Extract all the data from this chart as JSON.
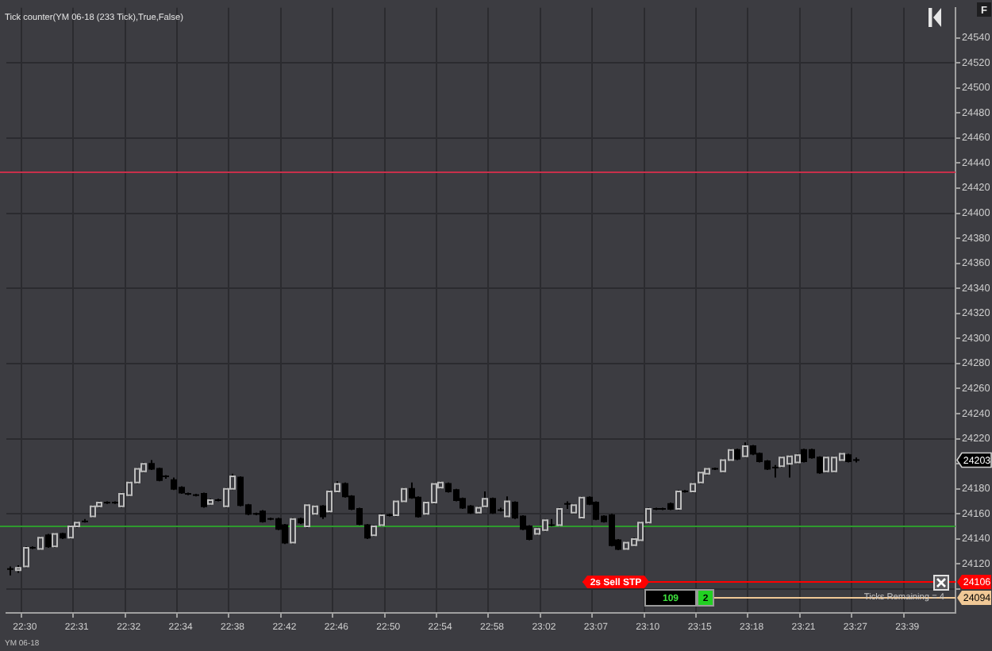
{
  "chart_data": {
    "type": "candlestick",
    "title": "Tick counter(YM 06-18 (233 Tick),True,False)",
    "categories": [
      null,
      null,
      "22:30",
      null,
      null,
      null,
      null,
      null,
      null,
      "22:31",
      null,
      null,
      null,
      null,
      null,
      null,
      "22:32",
      null,
      null,
      null,
      null,
      null,
      null,
      "22:34",
      null,
      null,
      null,
      null,
      null,
      null,
      "22:38",
      null,
      null,
      null,
      null,
      null,
      null,
      "22:42",
      null,
      null,
      null,
      null,
      null,
      null,
      "22:46",
      null,
      null,
      null,
      null,
      null,
      null,
      "22:50",
      null,
      null,
      null,
      null,
      null,
      null,
      "22:54",
      null,
      null,
      null,
      null,
      null,
      null,
      "22:58",
      null,
      null,
      null,
      null,
      null,
      null,
      "23:02",
      null,
      null,
      null,
      null,
      null,
      null,
      "23:07",
      null,
      null,
      null,
      null,
      null,
      null,
      "23:10",
      null,
      null,
      null,
      null,
      null,
      null,
      "23:15",
      null,
      null,
      null,
      null,
      null,
      null,
      "23:18",
      null,
      null,
      null,
      null,
      null,
      null,
      "23:21",
      null,
      null,
      null,
      null,
      null,
      null,
      "23:27",
      null,
      null,
      null,
      null,
      null,
      null,
      "23:39",
      null,
      null,
      null,
      null,
      null,
      null
    ],
    "ohlc": [
      [
        24116,
        24118,
        24111,
        24116
      ],
      [
        24115,
        24119,
        24113,
        24117
      ],
      [
        24118,
        24134,
        24117,
        24133
      ],
      [
        24133,
        24134,
        24132,
        24133
      ],
      [
        24132,
        24142,
        24131,
        24141
      ],
      [
        24143,
        24144,
        24133,
        24134
      ],
      [
        24134,
        24145,
        24133,
        24144
      ],
      [
        24144,
        24145,
        24140,
        24141
      ],
      [
        24141,
        24151,
        24140,
        24150
      ],
      [
        24150,
        24154,
        24149,
        24153
      ],
      [
        24154,
        24156,
        24153,
        24154
      ],
      [
        24158,
        24167,
        24157,
        24166
      ],
      [
        24166,
        24170,
        24165,
        24169
      ],
      [
        24169,
        24170,
        24168,
        24169
      ],
      [
        24169,
        24170,
        24168,
        24169
      ],
      [
        24166,
        24177,
        24165,
        24176
      ],
      [
        24175,
        24186,
        24174,
        24185
      ],
      [
        24185,
        24197,
        24184,
        24196
      ],
      [
        24194,
        24201,
        24193,
        24200
      ],
      [
        24200,
        24203,
        24195,
        24196
      ],
      [
        24196,
        24197,
        24186,
        24187
      ],
      [
        24190,
        24191,
        24188,
        24190
      ],
      [
        24187,
        24189,
        24179,
        24180
      ],
      [
        24181,
        24182,
        24176,
        24177
      ],
      [
        24176,
        24177,
        24175,
        24176
      ],
      [
        24175,
        24176,
        24174,
        24175
      ],
      [
        24176,
        24177,
        24165,
        24166
      ],
      [
        24168,
        24172,
        24167,
        24171
      ],
      [
        24171,
        24172,
        24170,
        24171
      ],
      [
        24166,
        24181,
        24165,
        24180
      ],
      [
        24180,
        24192,
        24179,
        24190
      ],
      [
        24189,
        24190,
        24166,
        24167
      ],
      [
        24167,
        24168,
        24159,
        24160
      ],
      [
        24160,
        24161,
        24159,
        24160
      ],
      [
        24162,
        24163,
        24153,
        24154
      ],
      [
        24156,
        24157,
        24155,
        24156
      ],
      [
        24156,
        24157,
        24147,
        24148
      ],
      [
        24151,
        24152,
        24136,
        24137
      ],
      [
        24137,
        24157,
        24136,
        24156
      ],
      [
        24156,
        24157,
        24152,
        24153
      ],
      [
        24150,
        24168,
        24149,
        24167
      ],
      [
        24160,
        24167,
        24159,
        24166
      ],
      [
        24166,
        24167,
        24156,
        24158
      ],
      [
        24162,
        24179,
        24161,
        24178
      ],
      [
        24178,
        24186,
        24177,
        24184
      ],
      [
        24184,
        24185,
        24173,
        24174
      ],
      [
        24174,
        24175,
        24163,
        24164
      ],
      [
        24164,
        24165,
        24151,
        24152
      ],
      [
        24151,
        24152,
        24140,
        24141
      ],
      [
        24143,
        24151,
        24142,
        24150
      ],
      [
        24151,
        24160,
        24150,
        24159
      ],
      [
        24159,
        24160,
        24158,
        24159
      ],
      [
        24159,
        24171,
        24158,
        24170
      ],
      [
        24170,
        24181,
        24169,
        24180
      ],
      [
        24180,
        24185,
        24172,
        24173
      ],
      [
        24173,
        24174,
        24157,
        24158
      ],
      [
        24160,
        24170,
        24159,
        24169
      ],
      [
        24169,
        24185,
        24168,
        24184
      ],
      [
        24181,
        24186,
        24180,
        24185
      ],
      [
        24184,
        24185,
        24177,
        24178
      ],
      [
        24179,
        24180,
        24170,
        24171
      ],
      [
        24172,
        24173,
        24164,
        24165
      ],
      [
        24166,
        24167,
        24160,
        24161
      ],
      [
        24161,
        24166,
        24160,
        24165
      ],
      [
        24166,
        24178,
        24165,
        24172
      ],
      [
        24172,
        24173,
        24160,
        24161
      ],
      [
        24163,
        24165,
        24162,
        24163
      ],
      [
        24158,
        24174,
        24157,
        24170
      ],
      [
        24169,
        24170,
        24156,
        24157
      ],
      [
        24158,
        24159,
        24147,
        24148
      ],
      [
        24150,
        24151,
        24139,
        24140
      ],
      [
        24144,
        24149,
        24143,
        24148
      ],
      [
        24147,
        24156,
        24146,
        24155
      ],
      [
        24151,
        24156,
        24150,
        24151
      ],
      [
        24151,
        24165,
        24150,
        24164
      ],
      [
        24168,
        24170,
        24164,
        24168
      ],
      [
        24161,
        24168,
        24160,
        24167
      ],
      [
        24157,
        24174,
        24156,
        24173
      ],
      [
        24173,
        24174,
        24167,
        24168
      ],
      [
        24169,
        24170,
        24155,
        24156
      ],
      [
        24158,
        24159,
        24153,
        24154
      ],
      [
        24159,
        24160,
        24134,
        24135
      ],
      [
        24139,
        24140,
        24131,
        24132
      ],
      [
        24132,
        24138,
        24131,
        24137
      ],
      [
        24135,
        24141,
        24134,
        24140
      ],
      [
        24139,
        24154,
        24138,
        24153
      ],
      [
        24153,
        24165,
        24152,
        24164
      ],
      [
        24164,
        24165,
        24163,
        24164
      ],
      [
        24164,
        24165,
        24163,
        24164
      ],
      [
        24168,
        24169,
        24163,
        24164
      ],
      [
        24164,
        24179,
        24163,
        24178
      ],
      [
        24178,
        24179,
        24177,
        24178
      ],
      [
        24178,
        24185,
        24177,
        24184
      ],
      [
        24185,
        24194,
        24184,
        24193
      ],
      [
        24192,
        24197,
        24191,
        24196
      ],
      [
        24196,
        24197,
        24195,
        24196
      ],
      [
        24194,
        24204,
        24193,
        24203
      ],
      [
        24203,
        24212,
        24202,
        24211
      ],
      [
        24211,
        24212,
        24203,
        24204
      ],
      [
        24206,
        24217,
        24205,
        24214
      ],
      [
        24214,
        24215,
        24207,
        24208
      ],
      [
        24208,
        24209,
        24201,
        24202
      ],
      [
        24202,
        24203,
        24195,
        24196
      ],
      [
        24197,
        24199,
        24189,
        24197
      ],
      [
        24198,
        24206,
        24197,
        24205
      ],
      [
        24200,
        24207,
        24189,
        24206
      ],
      [
        24201,
        24208,
        24200,
        24207
      ],
      [
        24211,
        24212,
        24201,
        24202
      ],
      [
        24211,
        24212,
        24204,
        24205
      ],
      [
        24205,
        24206,
        24192,
        24193
      ],
      [
        24194,
        24206,
        24193,
        24205
      ],
      [
        24194,
        24206,
        24193,
        24205
      ],
      [
        24203,
        24209,
        24202,
        24208
      ],
      [
        24207,
        24208,
        24201,
        24202
      ],
      [
        24203,
        24205,
        24201,
        24203
      ],
      null,
      null,
      null,
      null,
      null,
      null,
      null,
      null,
      null,
      null,
      null,
      null,
      null
    ],
    "ylim": [
      24081,
      24564
    ],
    "yticks": [
      {
        "value": 24100,
        "label": null
      },
      24120,
      24140,
      24160,
      24180,
      {
        "value": 24200,
        "label": null
      },
      24220,
      24240,
      24260,
      24280,
      24300,
      24320,
      24340,
      24360,
      24380,
      24400,
      24420,
      24440,
      24460,
      24480,
      24500,
      24520,
      24540
    ],
    "grid": true,
    "ref_lines": [
      {
        "axis": "y",
        "value": 24433,
        "color": "#c8304a"
      },
      {
        "axis": "y",
        "value": 24151,
        "color": "#2e9a2e"
      },
      {
        "axis": "y",
        "value": 24106,
        "label": "24106",
        "color": "#ff0000"
      },
      {
        "axis": "y",
        "value": 24094,
        "label": "24094",
        "color": "#f0c896"
      }
    ],
    "annotations": [
      {
        "text": "2s Sell STP",
        "y": 24106
      },
      {
        "text": "109",
        "y": 24094
      },
      {
        "text": "2",
        "y": 24094
      },
      {
        "text": "24203",
        "y": 24203
      },
      "Ticks Remaining = 4",
      "F",
      "YM 06-18"
    ]
  }
}
